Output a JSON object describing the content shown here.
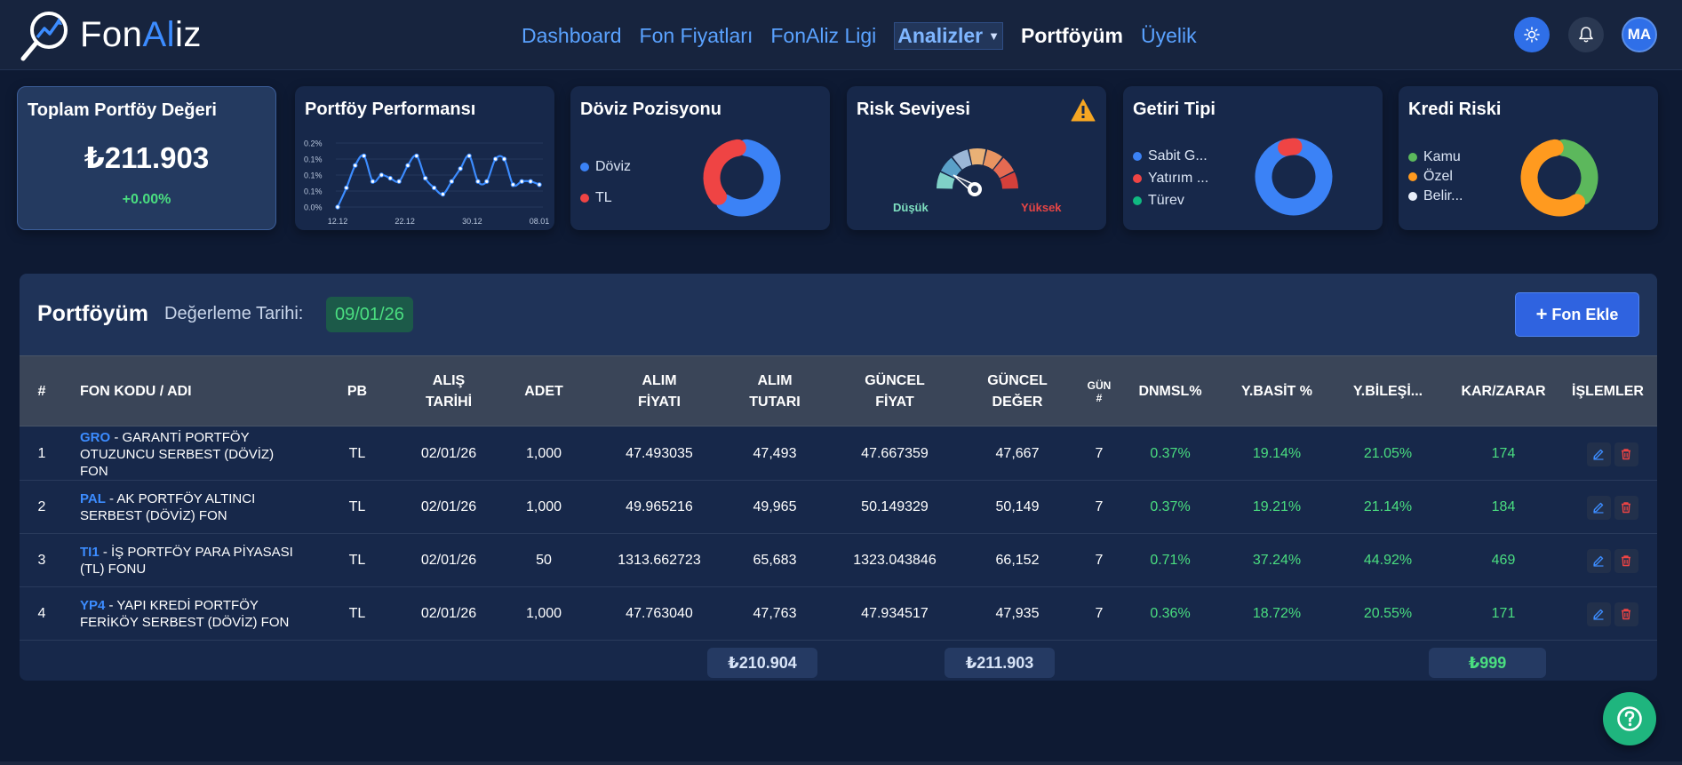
{
  "nav": {
    "logo_prefix": "Fon",
    "logo_accent": "Al",
    "logo_suffix": "iz",
    "menu": [
      {
        "label": "Dashboard"
      },
      {
        "label": "Fon Fiyatları"
      },
      {
        "label": "FonAliz Ligi"
      },
      {
        "label": "Analizler"
      },
      {
        "label": "Portföyüm"
      },
      {
        "label": "Üyelik"
      }
    ],
    "avatar_initials": "MA"
  },
  "cards": {
    "total": {
      "title": "Toplam Portföy Değeri",
      "value": "₺211.903",
      "change": "+0.00%"
    },
    "performance": {
      "title": "Portföy Performansı",
      "chart_data": {
        "type": "line",
        "y_tick_labels": [
          "0.2%",
          "0.1%",
          "0.1%",
          "0.1%",
          "0.0%"
        ],
        "x_tick_labels": [
          "12.12",
          "22.12",
          "30.12",
          "08.01"
        ],
        "values": [
          0.0,
          0.06,
          0.13,
          0.16,
          0.08,
          0.1,
          0.09,
          0.08,
          0.13,
          0.16,
          0.09,
          0.06,
          0.04,
          0.08,
          0.12,
          0.16,
          0.08,
          0.08,
          0.15,
          0.15,
          0.07,
          0.08,
          0.08,
          0.07
        ],
        "ylim": [
          0,
          0.2
        ],
        "color": "#3c8cff"
      }
    },
    "currency": {
      "title": "Döviz Pozisyonu",
      "chart_data": {
        "type": "pie",
        "labels": [
          "Döviz",
          "TL"
        ],
        "values": [
          62,
          38
        ],
        "colors": [
          "#3b82f6",
          "#ef4444"
        ]
      }
    },
    "risk": {
      "title": "Risk Seviyesi",
      "low_label": "Düşük",
      "high_label": "Yüksek",
      "warning_icon": "warning-icon"
    },
    "return_type": {
      "title": "Getiri Tipi",
      "chart_data": {
        "type": "pie",
        "labels": [
          "Sabit G...",
          "Yatırım ...",
          "Türev"
        ],
        "values": [
          96,
          4,
          0
        ],
        "colors": [
          "#3b82f6",
          "#ef4444",
          "#10b981"
        ]
      }
    },
    "credit_risk": {
      "title": "Kredi Riski",
      "chart_data": {
        "type": "pie",
        "labels": [
          "Kamu",
          "Özel",
          "Belir..."
        ],
        "values": [
          38,
          62,
          0
        ],
        "colors": [
          "#5cb85c",
          "#ff9a1f",
          "#e8eef9"
        ]
      }
    }
  },
  "portfolio": {
    "title": "Portföyüm",
    "valuation_label": "Değerleme Tarihi:",
    "valuation_date": "09/01/26",
    "add_button": "Fon Ekle",
    "columns": [
      "#",
      "FON KODU / ADI",
      "PB",
      "ALIŞ TARİHİ",
      "ADET",
      "ALIM FİYATI",
      "ALIM TUTARI",
      "GÜNCEL FİYAT",
      "GÜNCEL DEĞER",
      "GÜN #",
      "DNMSL%",
      "Y.BASİT %",
      "Y.BİLEŞİ...",
      "KAR/ZARAR",
      "İŞLEMLER"
    ],
    "rows": [
      {
        "no": "1",
        "code": "GRO",
        "name": " - GARANTİ PORTFÖY OTUZUNCU SERBEST (DÖVİZ) FON",
        "pb": "TL",
        "date": "02/01/26",
        "qty": "1,000",
        "buy_price": "47.493035",
        "buy_amount": "47,493",
        "cur_price": "47.667359",
        "cur_value": "47,667",
        "days": "7",
        "dnmsl": "0.37%",
        "y_simple": "19.14%",
        "y_comp": "21.05%",
        "pnl": "174"
      },
      {
        "no": "2",
        "code": "PAL",
        "name": " - AK PORTFÖY ALTINCI SERBEST (DÖVİZ) FON",
        "pb": "TL",
        "date": "02/01/26",
        "qty": "1,000",
        "buy_price": "49.965216",
        "buy_amount": "49,965",
        "cur_price": "50.149329",
        "cur_value": "50,149",
        "days": "7",
        "dnmsl": "0.37%",
        "y_simple": "19.21%",
        "y_comp": "21.14%",
        "pnl": "184"
      },
      {
        "no": "3",
        "code": "TI1",
        "name": " - İŞ PORTFÖY PARA PİYASASI (TL) FONU",
        "pb": "TL",
        "date": "02/01/26",
        "qty": "50",
        "buy_price": "1313.662723",
        "buy_amount": "65,683",
        "cur_price": "1323.043846",
        "cur_value": "66,152",
        "days": "7",
        "dnmsl": "0.71%",
        "y_simple": "37.24%",
        "y_comp": "44.92%",
        "pnl": "469"
      },
      {
        "no": "4",
        "code": "YP4",
        "name": " - YAPI KREDİ PORTFÖY FERİKÖY SERBEST (DÖVİZ) FON",
        "pb": "TL",
        "date": "02/01/26",
        "qty": "1,000",
        "buy_price": "47.763040",
        "buy_amount": "47,763",
        "cur_price": "47.934517",
        "cur_value": "47,935",
        "days": "7",
        "dnmsl": "0.36%",
        "y_simple": "18.72%",
        "y_comp": "20.55%",
        "pnl": "171"
      }
    ],
    "totals": {
      "buy_amount": "₺210.904",
      "cur_value": "₺211.903",
      "pnl": "₺999"
    }
  },
  "colors": {
    "accent": "#3c8cff",
    "positive": "#4ade80",
    "help": "#1fb57e"
  }
}
